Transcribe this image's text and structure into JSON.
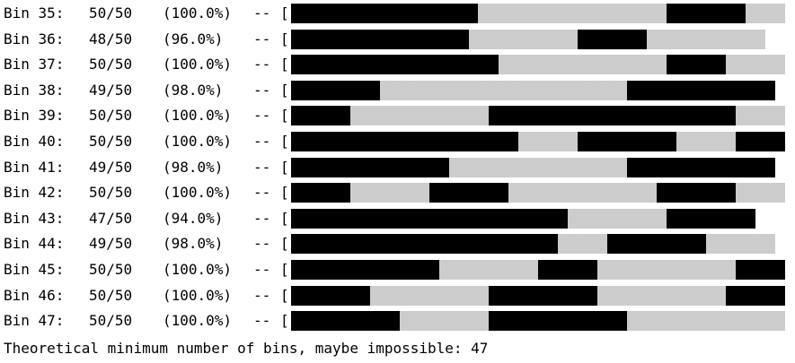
{
  "rows": [
    {
      "label": "Bin 35:",
      "count": "50/50",
      "pct": "(100.0%)",
      "sep": "--",
      "bracket": "[",
      "fill_fraction": 1.0,
      "segments": [
        [
          0,
          0.378
        ],
        [
          0.76,
          0.92
        ]
      ]
    },
    {
      "label": "Bin 36:",
      "count": "48/50",
      "pct": "(96.0%)",
      "sep": "--",
      "bracket": "[",
      "fill_fraction": 0.96,
      "segments": [
        [
          0,
          0.36
        ],
        [
          0.58,
          0.72
        ]
      ]
    },
    {
      "label": "Bin 37:",
      "count": "50/50",
      "pct": "(100.0%)",
      "sep": "--",
      "bracket": "[",
      "fill_fraction": 1.0,
      "segments": [
        [
          0,
          0.42
        ],
        [
          0.76,
          0.88
        ]
      ]
    },
    {
      "label": "Bin 38:",
      "count": "49/50",
      "pct": "(98.0%)",
      "sep": "--",
      "bracket": "[",
      "fill_fraction": 0.98,
      "segments": [
        [
          0,
          0.18
        ],
        [
          0.68,
          0.98
        ]
      ]
    },
    {
      "label": "Bin 39:",
      "count": "50/50",
      "pct": "(100.0%)",
      "sep": "--",
      "bracket": "[",
      "fill_fraction": 1.0,
      "segments": [
        [
          0,
          0.12
        ],
        [
          0.4,
          0.9
        ]
      ]
    },
    {
      "label": "Bin 40:",
      "count": "50/50",
      "pct": "(100.0%)",
      "sep": "--",
      "bracket": "[",
      "fill_fraction": 1.0,
      "segments": [
        [
          0,
          0.46
        ],
        [
          0.58,
          0.78
        ],
        [
          0.9,
          1.0
        ]
      ]
    },
    {
      "label": "Bin 41:",
      "count": "49/50",
      "pct": "(98.0%)",
      "sep": "--",
      "bracket": "[",
      "fill_fraction": 0.98,
      "segments": [
        [
          0,
          0.32
        ],
        [
          0.68,
          0.98
        ]
      ]
    },
    {
      "label": "Bin 42:",
      "count": "50/50",
      "pct": "(100.0%)",
      "sep": "--",
      "bracket": "[",
      "fill_fraction": 1.0,
      "segments": [
        [
          0,
          0.12
        ],
        [
          0.28,
          0.44
        ],
        [
          0.74,
          0.9
        ]
      ]
    },
    {
      "label": "Bin 43:",
      "count": "47/50",
      "pct": "(94.0%)",
      "sep": "--",
      "bracket": "[",
      "fill_fraction": 0.94,
      "segments": [
        [
          0,
          0.56
        ],
        [
          0.76,
          0.94
        ]
      ]
    },
    {
      "label": "Bin 44:",
      "count": "49/50",
      "pct": "(98.0%)",
      "sep": "--",
      "bracket": "[",
      "fill_fraction": 0.98,
      "segments": [
        [
          0,
          0.54
        ],
        [
          0.64,
          0.84
        ]
      ]
    },
    {
      "label": "Bin 45:",
      "count": "50/50",
      "pct": "(100.0%)",
      "sep": "--",
      "bracket": "[",
      "fill_fraction": 1.0,
      "segments": [
        [
          0,
          0.3
        ],
        [
          0.5,
          0.62
        ],
        [
          0.9,
          1.0
        ]
      ]
    },
    {
      "label": "Bin 46:",
      "count": "50/50",
      "pct": "(100.0%)",
      "sep": "--",
      "bracket": "[",
      "fill_fraction": 1.0,
      "segments": [
        [
          0,
          0.16
        ],
        [
          0.4,
          0.62
        ],
        [
          0.88,
          1.0
        ]
      ]
    },
    {
      "label": "Bin 47:",
      "count": "50/50",
      "pct": "(100.0%)",
      "sep": "--",
      "bracket": "[",
      "fill_fraction": 1.0,
      "segments": [
        [
          0,
          0.22
        ],
        [
          0.4,
          0.68
        ]
      ]
    }
  ],
  "footer": "Theoretical minimum number of bins, maybe impossible: 47",
  "colors": {
    "filled": "#000000",
    "empty_pattern": "#e6e6e6",
    "background": "#ffffff",
    "text": "#000000"
  }
}
